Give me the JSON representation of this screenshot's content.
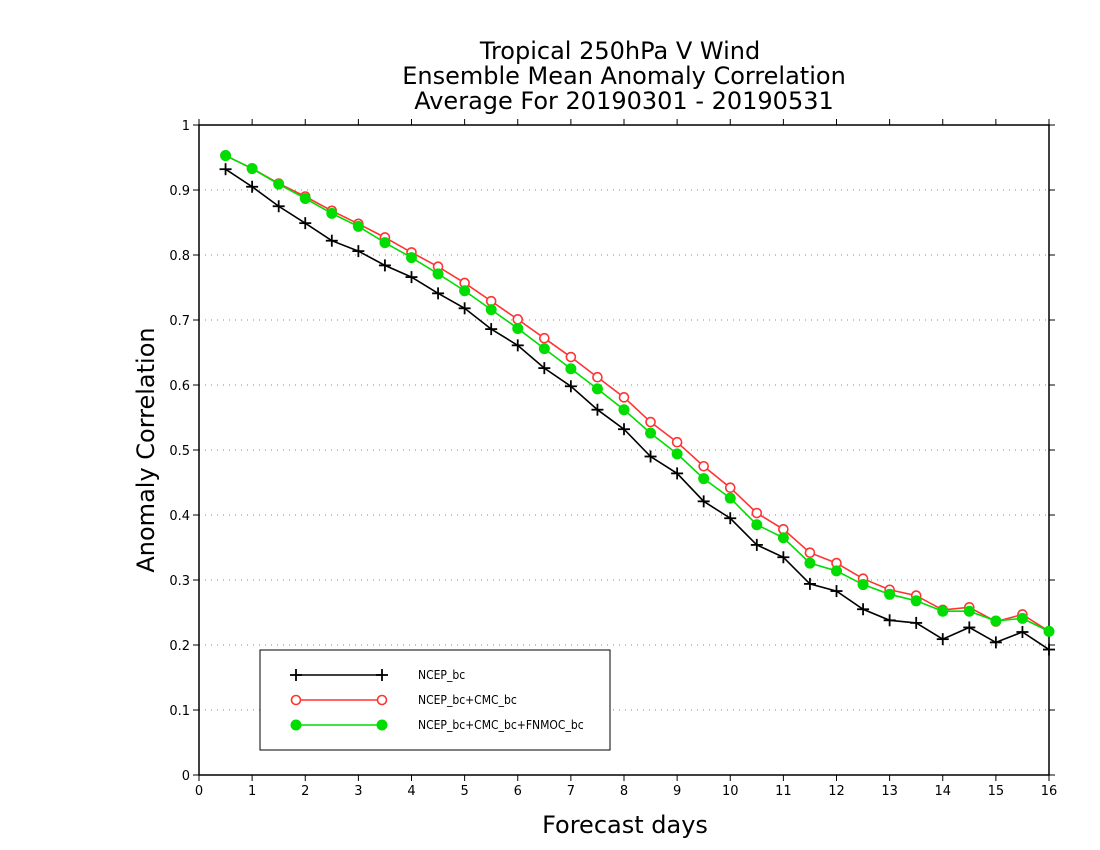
{
  "chart_data": {
    "type": "line",
    "title_lines": [
      "Tropical 250hPa V Wind",
      "Ensemble Mean Anomaly Correlation",
      "Average For 20190301 - 20190531"
    ],
    "xlabel": "Forecast days",
    "ylabel": "Anomaly Correlation",
    "xlim": [
      0,
      16
    ],
    "ylim": [
      0,
      1
    ],
    "xticks": [
      0,
      1,
      2,
      3,
      4,
      5,
      6,
      7,
      8,
      9,
      10,
      11,
      12,
      13,
      14,
      15,
      16
    ],
    "yticks": [
      0,
      0.1,
      0.2,
      0.3,
      0.4,
      0.5,
      0.6,
      0.7,
      0.8,
      0.9,
      1
    ],
    "ytick_labels": [
      "0",
      "0.1",
      "0.2",
      "0.3",
      "0.4",
      "0.5",
      "0.6",
      "0.7",
      "0.8",
      "0.9",
      "1"
    ],
    "grid": "horizontal dotted",
    "legend_position": "bottom-left",
    "x": [
      0.5,
      1,
      1.5,
      2,
      2.5,
      3,
      3.5,
      4,
      4.5,
      5,
      5.5,
      6,
      6.5,
      7,
      7.5,
      8,
      8.5,
      9,
      9.5,
      10,
      10.5,
      11,
      11.5,
      12,
      12.5,
      13,
      13.5,
      14,
      14.5,
      15,
      15.5,
      16
    ],
    "series": [
      {
        "name": "NCEP_bc",
        "color": "#000000",
        "marker": "plus",
        "values": [
          0.932,
          0.905,
          0.875,
          0.849,
          0.822,
          0.806,
          0.784,
          0.766,
          0.741,
          0.718,
          0.686,
          0.661,
          0.626,
          0.598,
          0.562,
          0.532,
          0.49,
          0.464,
          0.421,
          0.395,
          0.354,
          0.335,
          0.294,
          0.283,
          0.255,
          0.238,
          0.234,
          0.209,
          0.227,
          0.204,
          0.22,
          0.193
        ]
      },
      {
        "name": "NCEP_bc+CMC_bc",
        "color": "#ff3333",
        "marker": "open-circle",
        "values": [
          0.953,
          0.933,
          0.91,
          0.89,
          0.868,
          0.848,
          0.827,
          0.804,
          0.782,
          0.757,
          0.729,
          0.701,
          0.672,
          0.643,
          0.612,
          0.581,
          0.543,
          0.512,
          0.475,
          0.442,
          0.403,
          0.378,
          0.342,
          0.326,
          0.302,
          0.285,
          0.276,
          0.254,
          0.258,
          0.236,
          0.247,
          0.221
        ]
      },
      {
        "name": "NCEP_bc+CMC_bc+FNMOC_bc",
        "color": "#00dd00",
        "marker": "filled-circle",
        "values": [
          0.953,
          0.933,
          0.909,
          0.887,
          0.864,
          0.844,
          0.819,
          0.796,
          0.771,
          0.745,
          0.716,
          0.687,
          0.656,
          0.625,
          0.594,
          0.562,
          0.526,
          0.494,
          0.456,
          0.426,
          0.385,
          0.365,
          0.326,
          0.314,
          0.293,
          0.278,
          0.268,
          0.252,
          0.252,
          0.237,
          0.241,
          0.221
        ]
      }
    ]
  }
}
